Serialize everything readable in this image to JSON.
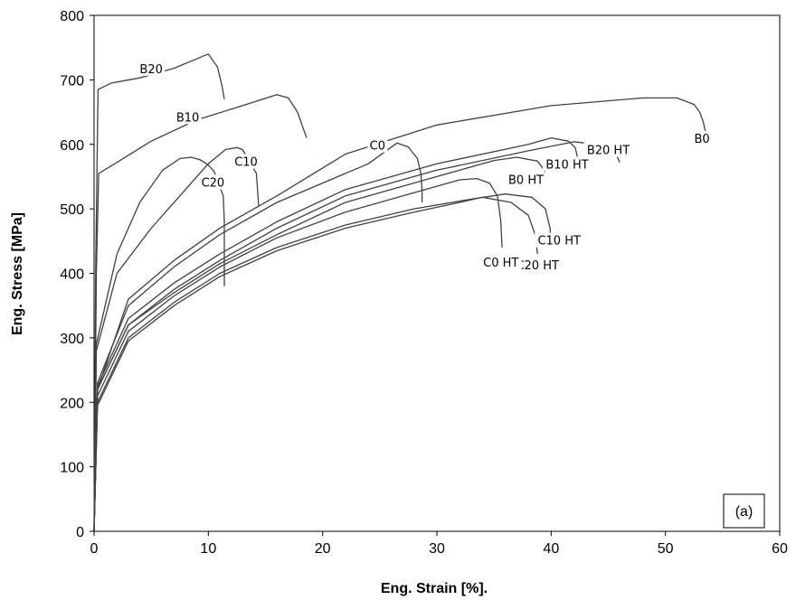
{
  "chart_data": {
    "type": "line",
    "xlabel": "Eng. Strain [%].",
    "ylabel": "Eng. Stress [MPa]",
    "xlim": [
      0,
      60
    ],
    "ylim": [
      0,
      800
    ],
    "xticks": [
      "0",
      "10",
      "20",
      "30",
      "40",
      "50",
      "60"
    ],
    "yticks": [
      "0",
      "100",
      "200",
      "300",
      "400",
      "500",
      "600",
      "700",
      "800"
    ],
    "grid": false,
    "line_color": "#404040",
    "panel_label": "(a)",
    "series": [
      {
        "name": "B20",
        "points": [
          [
            0,
            0
          ],
          [
            0.15,
            420
          ],
          [
            0.35,
            685
          ],
          [
            1.5,
            695
          ],
          [
            4,
            703
          ],
          [
            7,
            718
          ],
          [
            10,
            740
          ],
          [
            10.8,
            720
          ],
          [
            11,
            705
          ],
          [
            11.2,
            690
          ],
          [
            11.4,
            670
          ]
        ],
        "label_at": [
          5,
          712
        ]
      },
      {
        "name": "B10",
        "points": [
          [
            0,
            0
          ],
          [
            0.2,
            400
          ],
          [
            0.4,
            555
          ],
          [
            2,
            572
          ],
          [
            5,
            605
          ],
          [
            9,
            638
          ],
          [
            13,
            660
          ],
          [
            16,
            677
          ],
          [
            17,
            672
          ],
          [
            17.8,
            650
          ],
          [
            18.2,
            630
          ],
          [
            18.6,
            610
          ]
        ],
        "label_at": [
          8.2,
          637
        ]
      },
      {
        "name": "B0",
        "points": [
          [
            0,
            0
          ],
          [
            0.3,
            220
          ],
          [
            3,
            360
          ],
          [
            7,
            420
          ],
          [
            11,
            470
          ],
          [
            16,
            520
          ],
          [
            22,
            585
          ],
          [
            30,
            630
          ],
          [
            40,
            660
          ],
          [
            48,
            672
          ],
          [
            51,
            672
          ],
          [
            52.5,
            662
          ],
          [
            53,
            650
          ],
          [
            53.3,
            635
          ],
          [
            53.5,
            620
          ]
        ],
        "label_at": [
          53.2,
          604
        ]
      },
      {
        "name": "B20 HT",
        "points": [
          [
            0,
            0
          ],
          [
            0.3,
            220
          ],
          [
            3,
            320
          ],
          [
            7,
            375
          ],
          [
            11,
            420
          ],
          [
            16,
            470
          ],
          [
            22,
            520
          ],
          [
            30,
            560
          ],
          [
            38,
            590
          ],
          [
            42,
            604
          ],
          [
            44,
            600
          ],
          [
            45.2,
            590
          ],
          [
            45.8,
            580
          ],
          [
            46,
            572
          ]
        ],
        "label_at": [
          45,
          586
        ]
      },
      {
        "name": "B10 HT",
        "points": [
          [
            0,
            0
          ],
          [
            0.3,
            225
          ],
          [
            3,
            330
          ],
          [
            7,
            385
          ],
          [
            11,
            430
          ],
          [
            16,
            480
          ],
          [
            22,
            530
          ],
          [
            30,
            570
          ],
          [
            38,
            600
          ],
          [
            40,
            610
          ],
          [
            41.5,
            605
          ],
          [
            42.1,
            595
          ],
          [
            42.3,
            580
          ],
          [
            42.3,
            570
          ]
        ],
        "label_at": [
          41.4,
          564
        ]
      },
      {
        "name": "B0 HT",
        "points": [
          [
            0,
            0
          ],
          [
            0.3,
            220
          ],
          [
            3,
            320
          ],
          [
            7,
            370
          ],
          [
            11,
            415
          ],
          [
            16,
            460
          ],
          [
            22,
            510
          ],
          [
            30,
            550
          ],
          [
            35,
            575
          ],
          [
            37,
            580
          ],
          [
            38.8,
            574
          ],
          [
            39.4,
            560
          ],
          [
            39.5,
            550
          ]
        ],
        "label_at": [
          37.8,
          540
        ]
      },
      {
        "name": "C0",
        "points": [
          [
            0,
            0
          ],
          [
            0.3,
            230
          ],
          [
            3,
            350
          ],
          [
            7,
            410
          ],
          [
            11,
            460
          ],
          [
            16,
            510
          ],
          [
            20,
            540
          ],
          [
            24,
            570
          ],
          [
            26.5,
            602
          ],
          [
            27.5,
            596
          ],
          [
            28.3,
            578
          ],
          [
            28.6,
            555
          ],
          [
            28.7,
            530
          ],
          [
            28.7,
            510
          ]
        ],
        "label_at": [
          24.8,
          593
        ]
      },
      {
        "name": "C10",
        "points": [
          [
            0,
            0
          ],
          [
            0.2,
            280
          ],
          [
            2,
            400
          ],
          [
            5,
            470
          ],
          [
            8,
            530
          ],
          [
            10,
            570
          ],
          [
            11.5,
            592
          ],
          [
            12.5,
            595
          ],
          [
            13,
            592
          ],
          [
            14.2,
            555
          ],
          [
            14.3,
            530
          ],
          [
            14.4,
            505
          ]
        ],
        "label_at": [
          13.3,
          568
        ]
      },
      {
        "name": "C20",
        "points": [
          [
            0,
            0
          ],
          [
            0.2,
            290
          ],
          [
            2,
            430
          ],
          [
            4,
            510
          ],
          [
            6,
            560
          ],
          [
            7.5,
            578
          ],
          [
            8.5,
            580
          ],
          [
            9.3,
            576
          ],
          [
            10,
            568
          ],
          [
            10.5,
            558
          ],
          [
            11.3,
            520
          ],
          [
            11.4,
            480
          ],
          [
            11.4,
            420
          ],
          [
            11.4,
            380
          ]
        ],
        "label_at": [
          10.4,
          536
        ]
      },
      {
        "name": "C10 HT",
        "points": [
          [
            0,
            0
          ],
          [
            0.3,
            200
          ],
          [
            3,
            300
          ],
          [
            7,
            355
          ],
          [
            11,
            400
          ],
          [
            16,
            440
          ],
          [
            22,
            475
          ],
          [
            28,
            500
          ],
          [
            33,
            515
          ],
          [
            36,
            523
          ],
          [
            38.3,
            518
          ],
          [
            39.5,
            500
          ],
          [
            39.9,
            470
          ],
          [
            40,
            445
          ]
        ],
        "label_at": [
          40.7,
          446
        ]
      },
      {
        "name": "C20 HT",
        "points": [
          [
            0,
            0
          ],
          [
            0.3,
            195
          ],
          [
            3,
            295
          ],
          [
            7,
            350
          ],
          [
            11,
            395
          ],
          [
            16,
            435
          ],
          [
            22,
            470
          ],
          [
            28,
            495
          ],
          [
            32,
            510
          ],
          [
            34,
            518
          ],
          [
            36.5,
            510
          ],
          [
            38,
            490
          ],
          [
            38.6,
            460
          ],
          [
            38.8,
            430
          ]
        ],
        "label_at": [
          38.8,
          408
        ]
      },
      {
        "name": "C0 HT",
        "points": [
          [
            0,
            0
          ],
          [
            0.3,
            210
          ],
          [
            3,
            310
          ],
          [
            7,
            365
          ],
          [
            11,
            410
          ],
          [
            16,
            455
          ],
          [
            22,
            495
          ],
          [
            28,
            525
          ],
          [
            32,
            545
          ],
          [
            33.5,
            547
          ],
          [
            34.6,
            540
          ],
          [
            35.3,
            520
          ],
          [
            35.6,
            480
          ],
          [
            35.7,
            440
          ]
        ],
        "label_at": [
          35.6,
          412
        ]
      }
    ]
  }
}
